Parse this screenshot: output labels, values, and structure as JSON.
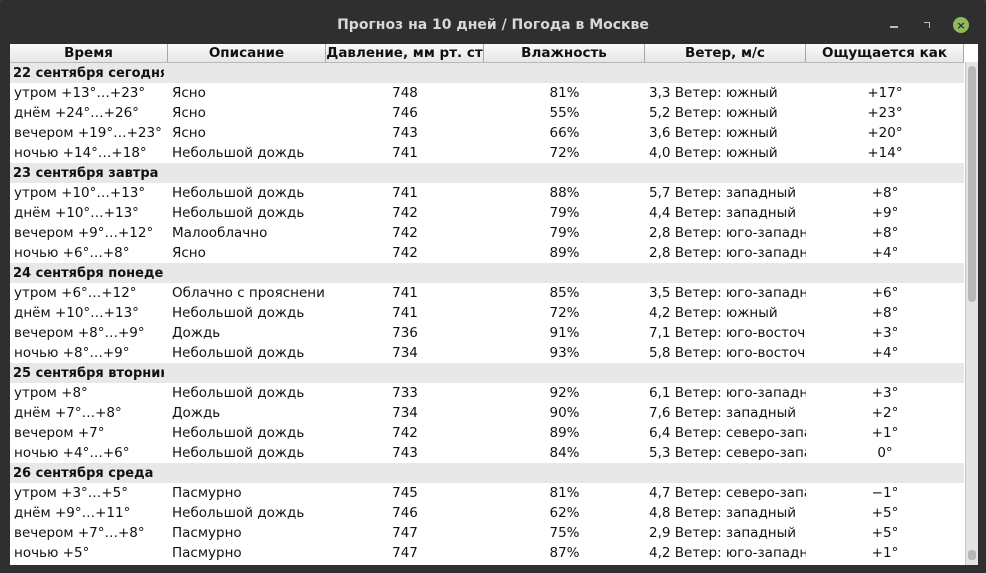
{
  "window": {
    "title": "Прогноз на 10 дней / Погода в Москве",
    "controls": {
      "minimize": "minimize",
      "maximize": "maximize",
      "close": "×"
    }
  },
  "columns": [
    "Время",
    "Описание",
    "Давление, мм рт. ст",
    "Влажность",
    "Ветер, м/с",
    "Ощущается как"
  ],
  "groups": [
    {
      "label": "22 сентября сегодня",
      "rows": [
        [
          "утром +13°…+23°",
          "Ясно",
          "748",
          "81%",
          "3,3 Ветер: южный",
          "+17°"
        ],
        [
          "днём +24°…+26°",
          "Ясно",
          "746",
          "55%",
          "5,2 Ветер: южный",
          "+23°"
        ],
        [
          "вечером +19°…+23°",
          "Ясно",
          "743",
          "66%",
          "3,6 Ветер: южный",
          "+20°"
        ],
        [
          "ночью +14°…+18°",
          "Небольшой дождь",
          "741",
          "72%",
          "4,0 Ветер: южный",
          "+14°"
        ]
      ]
    },
    {
      "label": "23 сентября завтра",
      "rows": [
        [
          "утром +10°…+13°",
          "Небольшой дождь",
          "741",
          "88%",
          "5,7 Ветер: западный",
          "+8°"
        ],
        [
          "днём +10°…+13°",
          "Небольшой дождь",
          "742",
          "79%",
          "4,4 Ветер: западный",
          "+9°"
        ],
        [
          "вечером +9°…+12°",
          "Малооблачно",
          "742",
          "79%",
          "2,8 Ветер: юго-западн",
          "+8°"
        ],
        [
          "ночью +6°…+8°",
          "Ясно",
          "742",
          "89%",
          "2,8 Ветер: юго-западн",
          "+4°"
        ]
      ]
    },
    {
      "label": "24 сентября понедел",
      "rows": [
        [
          "утром +6°…+12°",
          "Облачно с прояснени",
          "741",
          "85%",
          "3,5 Ветер: юго-западн",
          "+6°"
        ],
        [
          "днём +10°…+13°",
          "Небольшой дождь",
          "741",
          "72%",
          "4,2 Ветер: южный",
          "+8°"
        ],
        [
          "вечером +8°…+9°",
          "Дождь",
          "736",
          "91%",
          "7,1 Ветер: юго-восточ",
          "+3°"
        ],
        [
          "ночью +8°…+9°",
          "Небольшой дождь",
          "734",
          "93%",
          "5,8 Ветер: юго-восточ",
          "+4°"
        ]
      ]
    },
    {
      "label": "25 сентября вторник",
      "rows": [
        [
          "утром +8°",
          "Небольшой дождь",
          "733",
          "92%",
          "6,1 Ветер: юго-западн",
          "+3°"
        ],
        [
          "днём +7°…+8°",
          "Дождь",
          "734",
          "90%",
          "7,6 Ветер: западный",
          "+2°"
        ],
        [
          "вечером +7°",
          "Небольшой дождь",
          "742",
          "89%",
          "6,4 Ветер: северо-запа",
          "+1°"
        ],
        [
          "ночью +4°…+6°",
          "Небольшой дождь",
          "743",
          "84%",
          "5,3 Ветер: северо-запа",
          "0°"
        ]
      ]
    },
    {
      "label": "26 сентября среда",
      "rows": [
        [
          "утром +3°…+5°",
          "Пасмурно",
          "745",
          "81%",
          "4,7 Ветер: северо-запа",
          "−1°"
        ],
        [
          "днём +9°…+11°",
          "Небольшой дождь",
          "746",
          "62%",
          "4,8 Ветер: западный",
          "+5°"
        ],
        [
          "вечером +7°…+8°",
          "Пасмурно",
          "747",
          "75%",
          "2,9 Ветер: западный",
          "+5°"
        ],
        [
          "ночью +5°",
          "Пасмурно",
          "747",
          "87%",
          "4,2 Ветер: юго-западн",
          "+1°"
        ]
      ]
    }
  ]
}
